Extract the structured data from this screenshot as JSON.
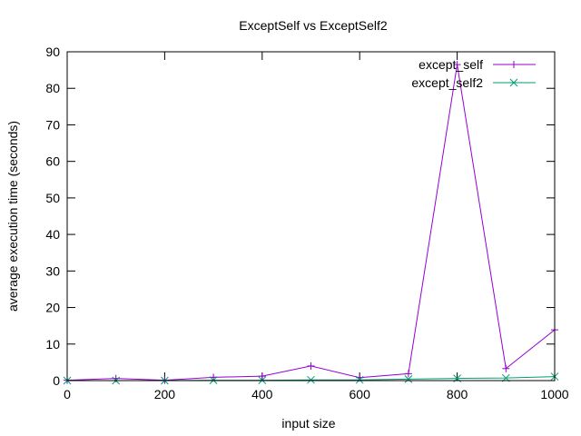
{
  "chart_data": {
    "type": "line",
    "title": "ExceptSelf vs ExceptSelf2",
    "xlabel": "input size",
    "ylabel": "average execution time (seconds)",
    "xlim": [
      0,
      1000
    ],
    "ylim": [
      0,
      90
    ],
    "xticks": [
      0,
      200,
      400,
      600,
      800,
      1000
    ],
    "yticks": [
      0,
      10,
      20,
      30,
      40,
      50,
      60,
      70,
      80,
      90
    ],
    "grid": false,
    "legend_position": "top-right",
    "x": [
      0,
      100,
      200,
      300,
      400,
      500,
      600,
      700,
      800,
      900,
      1000
    ],
    "series": [
      {
        "name": "except_self",
        "marker": "plus",
        "color": "#9400d3",
        "values": [
          0.1,
          0.6,
          0.1,
          0.9,
          1.2,
          4.0,
          0.8,
          1.9,
          86.5,
          3.3,
          13.9
        ]
      },
      {
        "name": "except_self2",
        "marker": "cross",
        "color": "#009e73",
        "values": [
          0.0,
          0.0,
          0.0,
          0.1,
          0.1,
          0.2,
          0.2,
          0.4,
          0.6,
          0.7,
          1.1
        ]
      }
    ]
  }
}
